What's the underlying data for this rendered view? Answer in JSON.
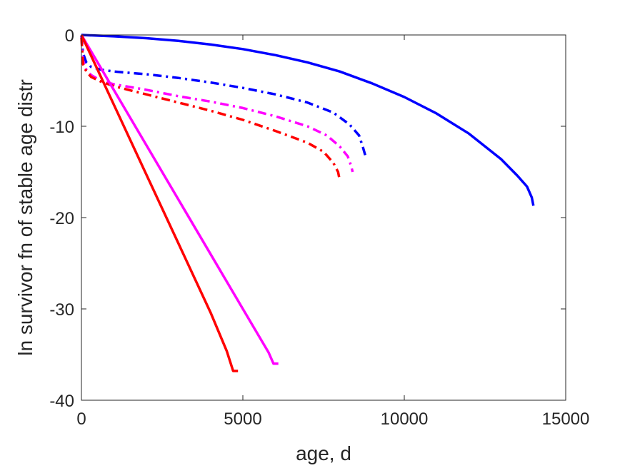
{
  "chart_data": {
    "type": "line",
    "title": "",
    "xlabel": "age, d",
    "ylabel": "ln survivor fn of stable age distr",
    "xlim": [
      0,
      15000
    ],
    "ylim": [
      -40,
      0
    ],
    "xticks": [
      0,
      5000,
      10000,
      15000
    ],
    "yticks": [
      0,
      -10,
      -20,
      -30,
      -40
    ],
    "xtick_labels": [
      "0",
      "5000",
      "10000",
      "15000"
    ],
    "ytick_labels": [
      "0",
      "-10",
      "-20",
      "-30",
      "-40"
    ],
    "grid": false,
    "series": [
      {
        "color": "#0000ff",
        "style": "solid",
        "x": [
          0,
          1000,
          2000,
          3000,
          4000,
          5000,
          6000,
          7000,
          8000,
          9000,
          10000,
          11000,
          12000,
          13000,
          13500,
          13800,
          13950,
          14000
        ],
        "y": [
          0,
          -0.15,
          -0.35,
          -0.65,
          -1.05,
          -1.55,
          -2.2,
          -3.0,
          -4.0,
          -5.3,
          -6.8,
          -8.6,
          -10.8,
          -13.6,
          -15.4,
          -16.6,
          -17.8,
          -18.7
        ]
      },
      {
        "color": "#0000ff",
        "style": "dashdot",
        "x": [
          0,
          50,
          150,
          300,
          600,
          1000,
          2000,
          3000,
          4000,
          5000,
          6000,
          7000,
          7800,
          8300,
          8600,
          8720,
          8800
        ],
        "y": [
          -0.1,
          -2.0,
          -3.0,
          -3.5,
          -3.8,
          -4.0,
          -4.3,
          -4.7,
          -5.2,
          -5.8,
          -6.5,
          -7.4,
          -8.5,
          -9.8,
          -11.0,
          -12.3,
          -13.3
        ]
      },
      {
        "color": "#ff00ff",
        "style": "dashdot",
        "x": [
          0,
          50,
          150,
          300,
          600,
          1000,
          2000,
          3000,
          4000,
          5000,
          6000,
          7000,
          7600,
          8000,
          8250,
          8350,
          8400
        ],
        "y": [
          -0.2,
          -2.8,
          -3.8,
          -4.4,
          -5.0,
          -5.4,
          -6.0,
          -6.7,
          -7.3,
          -8.0,
          -8.9,
          -10.0,
          -11.0,
          -12.2,
          -13.3,
          -14.3,
          -15.0
        ]
      },
      {
        "color": "#ff0000",
        "style": "dashdot",
        "x": [
          0,
          50,
          150,
          300,
          600,
          1000,
          2000,
          3000,
          4000,
          5000,
          6000,
          7000,
          7500,
          7800,
          7950,
          8000
        ],
        "y": [
          -0.3,
          -3.2,
          -4.0,
          -4.6,
          -5.1,
          -5.6,
          -6.5,
          -7.4,
          -8.3,
          -9.3,
          -10.5,
          -11.8,
          -12.8,
          -14.0,
          -15.0,
          -15.9
        ]
      },
      {
        "color": "#ff00ff",
        "style": "solid",
        "x": [
          0,
          1000,
          2000,
          3000,
          4000,
          5000,
          5800,
          5950,
          6100
        ],
        "y": [
          0,
          -6.0,
          -12.0,
          -18.0,
          -24.0,
          -30.0,
          -34.8,
          -36.0,
          -36.0
        ]
      },
      {
        "color": "#ff0000",
        "style": "solid",
        "x": [
          0,
          1000,
          2000,
          3000,
          4000,
          4500,
          4700,
          4850
        ],
        "y": [
          0,
          -7.6,
          -15.2,
          -22.8,
          -30.4,
          -34.6,
          -36.8,
          -36.8
        ]
      }
    ]
  }
}
